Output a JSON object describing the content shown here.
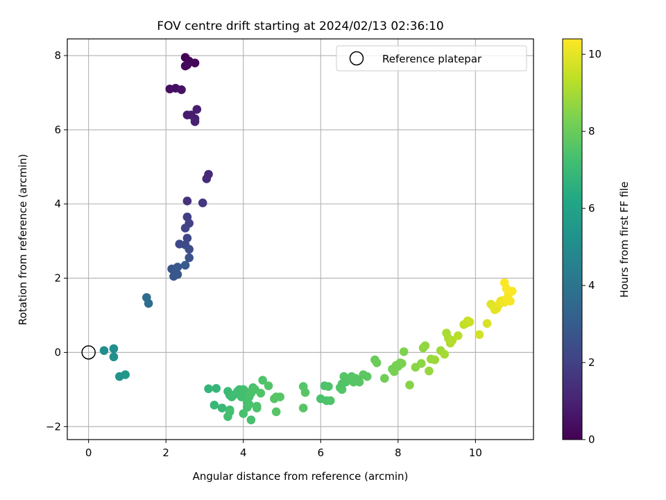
{
  "chart_data": {
    "type": "scatter",
    "title": "FOV centre drift starting at 2024/02/13 02:36:10",
    "xlabel": "Angular distance from reference (arcmin)",
    "ylabel": "Rotation from reference (arcmin)",
    "xlim": [
      -0.55,
      11.5
    ],
    "ylim": [
      -2.35,
      8.45
    ],
    "xticks": [
      0,
      2,
      4,
      6,
      8,
      10
    ],
    "yticks": [
      -2,
      0,
      2,
      4,
      6,
      8
    ],
    "xtick_labels": [
      "0",
      "2",
      "4",
      "6",
      "8",
      "10"
    ],
    "ytick_labels": [
      "−2",
      "0",
      "2",
      "4",
      "6",
      "8"
    ],
    "grid": true,
    "legend": {
      "position": "top-right",
      "entries": [
        {
          "label": "Reference platepar",
          "marker": "open-circle"
        }
      ]
    },
    "reference_point": {
      "x": 0,
      "y": 0
    },
    "colorbar": {
      "label": "Hours from first FF file",
      "range": [
        0,
        10.4
      ],
      "ticks": [
        0,
        2,
        4,
        6,
        8,
        10
      ],
      "tick_labels": [
        "0",
        "2",
        "4",
        "6",
        "8",
        "10"
      ],
      "colormap": "viridis"
    },
    "series": [
      {
        "x": [
          2.5,
          2.6,
          2.75,
          2.5,
          2.55,
          2.1,
          2.25,
          2.4,
          2.55,
          2.65,
          2.8,
          2.75,
          2.75,
          2.55,
          3.1,
          3.05,
          2.95
        ],
        "y": [
          7.95,
          7.85,
          7.8,
          7.72,
          7.75,
          7.1,
          7.12,
          7.08,
          6.4,
          6.4,
          6.55,
          6.3,
          6.22,
          4.08,
          4.8,
          4.68,
          4.03
        ],
        "t": [
          0.0,
          0.1,
          0.15,
          0.2,
          0.25,
          0.4,
          0.45,
          0.5,
          0.75,
          0.8,
          0.85,
          0.9,
          0.95,
          1.5,
          1.2,
          1.25,
          1.7
        ]
      },
      {
        "x": [
          2.55,
          2.6,
          2.5,
          2.55,
          2.35,
          2.5,
          2.6,
          2.6,
          2.15,
          2.25,
          2.2,
          2.3,
          2.3,
          2.5,
          1.5,
          1.55
        ],
        "y": [
          3.65,
          3.48,
          3.35,
          3.08,
          2.92,
          2.9,
          2.78,
          2.55,
          2.25,
          2.2,
          2.05,
          2.1,
          2.3,
          2.35,
          1.48,
          1.32
        ],
        "t": [
          1.9,
          2.0,
          2.1,
          2.2,
          2.3,
          2.35,
          2.45,
          2.6,
          2.7,
          2.75,
          2.8,
          2.85,
          2.9,
          2.95,
          3.6,
          3.7
        ]
      },
      {
        "x": [
          0.4,
          0.65,
          0.65,
          0.8,
          0.95
        ],
        "y": [
          0.05,
          0.1,
          -0.12,
          -0.65,
          -0.6
        ],
        "t": [
          5.0,
          5.1,
          5.2,
          5.35,
          5.45
        ]
      },
      {
        "x": [
          3.1,
          3.3,
          3.25,
          3.45,
          3.6,
          3.65,
          3.7,
          3.65,
          3.75,
          3.85,
          3.9,
          3.95,
          4.05,
          4.0,
          4.1,
          4.15,
          4.2,
          4.25,
          4.3,
          4.35,
          4.45,
          4.5,
          4.65,
          4.8,
          4.85,
          4.95,
          4.1,
          4.2,
          3.6,
          3.65,
          4.0,
          4.15,
          4.35,
          4.85,
          5.55,
          5.6,
          5.55,
          6.0,
          6.1,
          6.15,
          6.25,
          6.2,
          6.5,
          6.55,
          6.6,
          6.7,
          6.8,
          6.85,
          6.9,
          7.0,
          7.1,
          7.2,
          6.55,
          6.65,
          6.75,
          6.95
        ],
        "y": [
          -0.98,
          -0.97,
          -1.42,
          -1.5,
          -1.05,
          -1.15,
          -1.2,
          -1.55,
          -1.15,
          -1.05,
          -1.0,
          -1.2,
          -1.05,
          -1.0,
          -1.35,
          -1.2,
          -1.1,
          -0.95,
          -1.0,
          -1.45,
          -1.1,
          -0.75,
          -0.9,
          -1.25,
          -1.6,
          -1.2,
          -1.48,
          -1.82,
          -1.73,
          -1.6,
          -1.65,
          -1.4,
          -1.5,
          -1.2,
          -0.92,
          -1.08,
          -1.5,
          -1.25,
          -0.9,
          -1.3,
          -1.3,
          -0.92,
          -0.95,
          -1.0,
          -0.65,
          -0.75,
          -0.65,
          -0.8,
          -0.7,
          -0.8,
          -0.6,
          -0.65,
          -0.85,
          -0.8,
          -0.7,
          -0.75
        ],
        "t": [
          6.8,
          6.85,
          6.9,
          6.95,
          7.0,
          7.05,
          7.1,
          7.1,
          7.15,
          7.2,
          7.2,
          7.25,
          7.3,
          7.3,
          7.35,
          7.35,
          7.4,
          7.4,
          7.45,
          7.45,
          7.5,
          7.5,
          7.55,
          7.6,
          7.6,
          7.65,
          7.3,
          7.35,
          7.25,
          7.3,
          7.35,
          7.4,
          7.45,
          7.6,
          7.6,
          7.65,
          7.65,
          7.4,
          7.45,
          7.45,
          7.5,
          7.5,
          7.55,
          7.55,
          7.6,
          7.6,
          7.65,
          7.65,
          7.7,
          7.7,
          7.75,
          7.75,
          7.5,
          7.55,
          7.6,
          7.65
        ]
      },
      {
        "x": [
          7.4,
          7.45,
          7.65,
          7.85,
          7.9,
          8.0,
          8.1,
          8.15,
          8.05,
          7.95,
          8.3,
          8.45,
          8.6,
          8.65,
          8.7,
          8.8,
          8.85,
          8.95,
          9.1,
          9.2,
          9.25,
          9.3,
          9.35,
          9.4,
          9.55,
          9.7,
          9.75,
          9.8,
          9.85,
          10.1,
          10.3
        ],
        "y": [
          -0.2,
          -0.28,
          -0.7,
          -0.45,
          -0.52,
          -0.38,
          -0.3,
          0.02,
          -0.28,
          -0.35,
          -0.88,
          -0.4,
          -0.3,
          0.12,
          0.18,
          -0.5,
          -0.18,
          -0.2,
          0.05,
          -0.05,
          0.52,
          0.38,
          0.25,
          0.32,
          0.45,
          0.75,
          0.78,
          0.85,
          0.82,
          0.48,
          0.78
        ],
        "t": [
          8.0,
          8.05,
          8.1,
          8.2,
          8.25,
          8.3,
          8.35,
          8.4,
          8.3,
          8.25,
          8.5,
          8.55,
          8.6,
          8.65,
          8.7,
          8.75,
          8.8,
          8.85,
          8.9,
          9.0,
          9.05,
          9.1,
          9.15,
          9.2,
          9.3,
          9.4,
          9.45,
          9.5,
          9.55,
          9.7,
          9.8
        ]
      },
      {
        "x": [
          10.4,
          10.45,
          10.55,
          10.6,
          10.5,
          10.65,
          10.7,
          10.75,
          10.8,
          10.85,
          10.9,
          10.95,
          10.75,
          10.8
        ],
        "y": [
          1.3,
          1.25,
          1.18,
          1.28,
          1.15,
          1.38,
          1.4,
          1.35,
          1.42,
          1.55,
          1.38,
          1.65,
          1.88,
          1.72
        ],
        "t": [
          9.9,
          9.95,
          10.0,
          10.05,
          10.0,
          10.1,
          10.15,
          10.2,
          10.25,
          10.3,
          10.3,
          10.35,
          10.4,
          10.35
        ]
      }
    ]
  }
}
